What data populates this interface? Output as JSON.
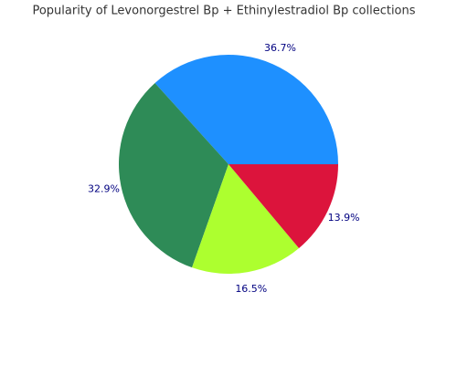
{
  "chart_data": {
    "type": "pie",
    "title": "Popularity of Levonorgestrel Bp + Ethinylestradiol Bp collections",
    "values": [
      36.7,
      32.9,
      16.5,
      13.9
    ],
    "value_labels": [
      "36.7%",
      "32.9%",
      "16.5%",
      "13.9%"
    ],
    "colors": [
      "#1e90ff",
      "#2e8b57",
      "#adff2f",
      "#dc143c"
    ],
    "label_color": "#000080"
  }
}
